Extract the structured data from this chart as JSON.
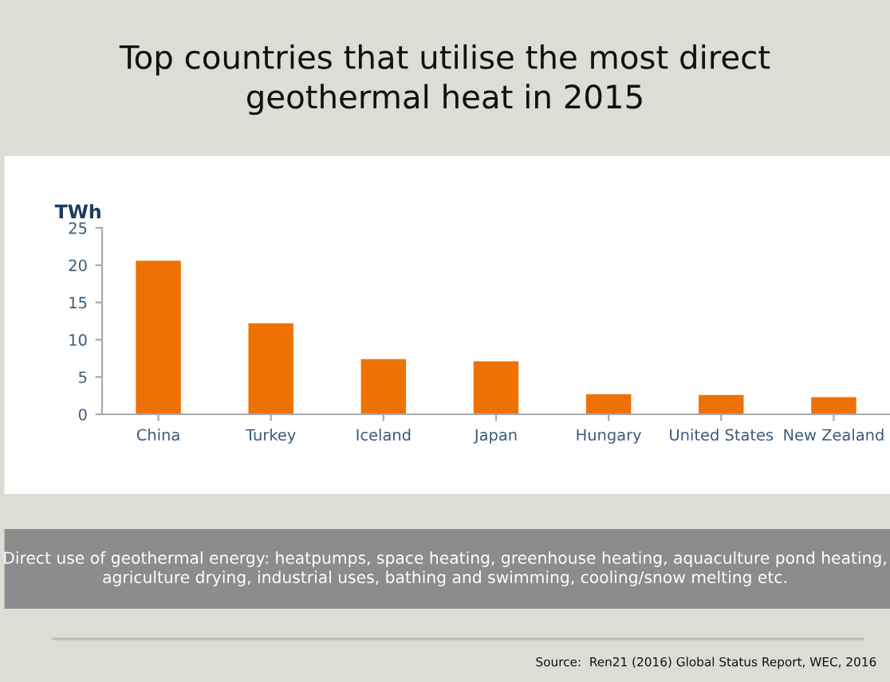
{
  "chart_data": {
    "type": "bar",
    "title": "Top countries that utilise the most direct\ngeothermal heat in 2015",
    "ylabel": "TWh",
    "categories": [
      "China",
      "Turkey",
      "Iceland",
      "Japan",
      "Hungary",
      "United States",
      "New Zealand"
    ],
    "values": [
      20.6,
      12.2,
      7.4,
      7.1,
      2.7,
      2.6,
      2.3
    ],
    "color": "#ee7203",
    "ylim": [
      0,
      25
    ],
    "yticks": [
      0,
      5,
      10,
      15,
      20,
      25
    ],
    "grid": false,
    "legend": false,
    "annotations": [
      "Direct use of geothermal energy: heatpumps, space heating, greenhouse heating, aquaculture pond heating, agriculture drying, industrial uses, bathing and swimming, cooling/snow melting etc.",
      "Source:  Ren21 (2016) Global Status Report, WEC, 2016"
    ]
  }
}
